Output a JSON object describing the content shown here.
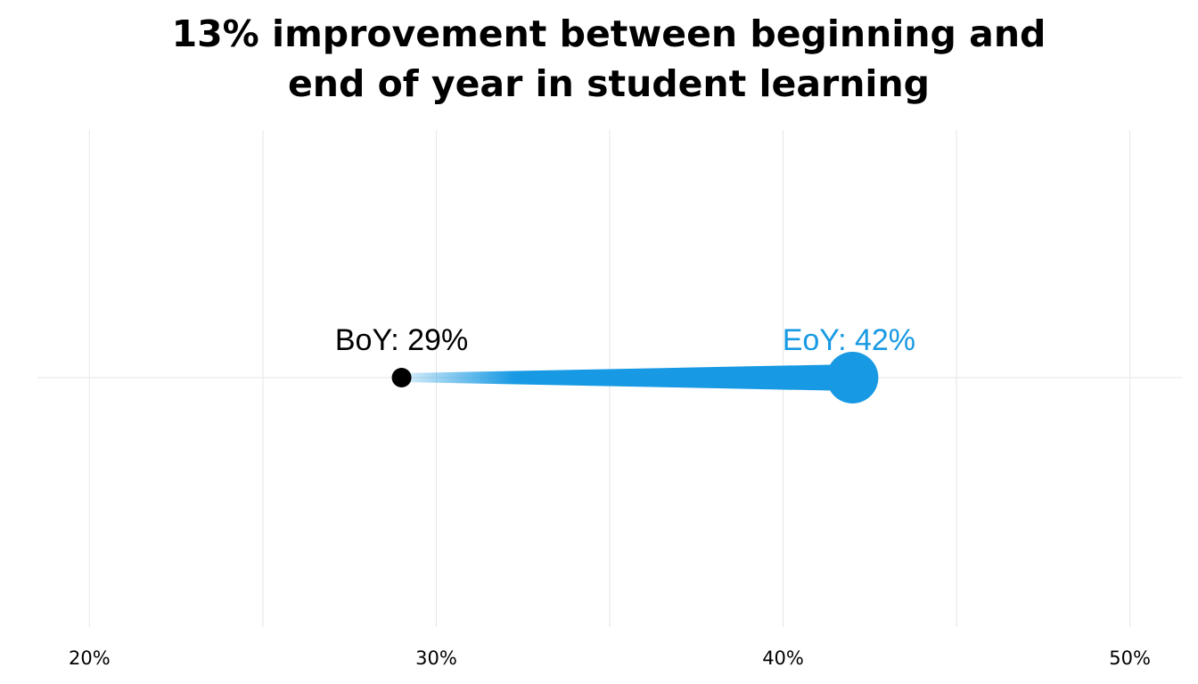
{
  "title_lines": [
    "13% improvement between beginning and",
    "end of year in student learning"
  ],
  "colors": {
    "start_point": "#000000",
    "end_point": "#1799e3",
    "grid": "#e6e6e6"
  },
  "chart_data": {
    "type": "dumbbell",
    "title": "13% improvement between beginning and end of year in student learning",
    "xlabel": "",
    "ylabel": "",
    "xlim": [
      18.5,
      51.5
    ],
    "x_ticks": [
      20,
      30,
      40,
      50
    ],
    "x_tick_labels": [
      "20%",
      "30%",
      "40%",
      "50%"
    ],
    "grid": true,
    "points": [
      {
        "label": "BoY: 29%",
        "value": 29,
        "color": "#000000"
      },
      {
        "label": "EoY: 42%",
        "value": 42,
        "color": "#1799e3"
      }
    ]
  }
}
